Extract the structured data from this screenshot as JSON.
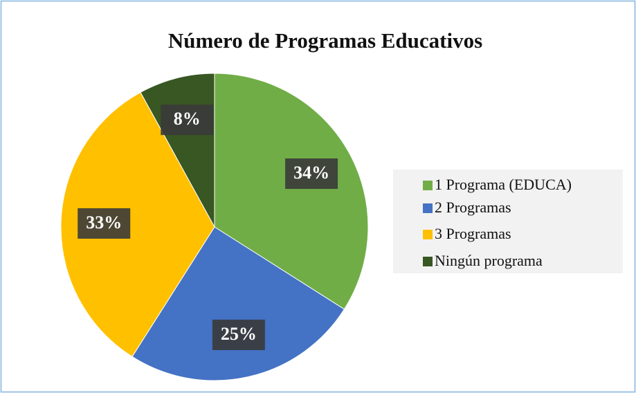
{
  "chart_data": {
    "type": "pie",
    "title": "Número de Programas Educativos",
    "categories": [
      "1 Programa (EDUCA)",
      "2 Programas",
      "3 Programas",
      "Ningún programa"
    ],
    "values": [
      34,
      25,
      33,
      8
    ],
    "value_labels": [
      "34%",
      "25%",
      "33%",
      "8%"
    ],
    "colors": [
      "#70ad47",
      "#4472c4",
      "#ffc000",
      "#385723"
    ],
    "legend": "right"
  }
}
